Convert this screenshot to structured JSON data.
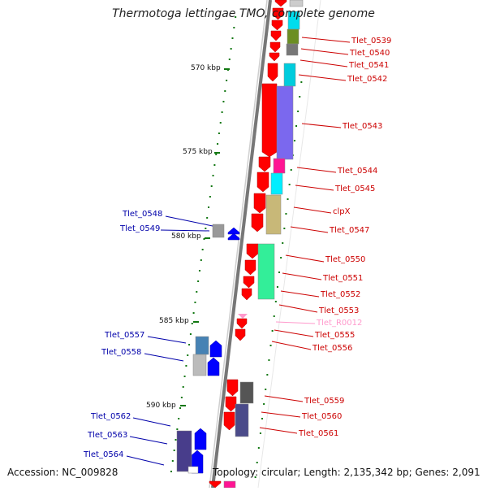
{
  "title": "Thermotoga lettingae TMO, complete genome",
  "footer": {
    "accession": "Accession: NC_009828",
    "topology": "Topology: circular; Length: 2,135,342 bp; Genes: 2,091"
  },
  "scale": {
    "labels": [
      "570 kbp",
      "575 kbp",
      "580 kbp",
      "585 kbp",
      "590 kbp"
    ]
  },
  "colors": {
    "forward_gene": "#ff0000",
    "reverse_gene": "#0000ff",
    "rna": "#ff99cc",
    "backbone": "#888888",
    "tick": "#117711"
  },
  "genes_right": [
    {
      "name": "Tlet_0539",
      "color": "#cc0000"
    },
    {
      "name": "Tlet_0540",
      "color": "#cc0000"
    },
    {
      "name": "Tlet_0541",
      "color": "#cc0000"
    },
    {
      "name": "Tlet_0542",
      "color": "#cc0000"
    },
    {
      "name": "Tlet_0543",
      "color": "#cc0000"
    },
    {
      "name": "Tlet_0544",
      "color": "#cc0000"
    },
    {
      "name": "Tlet_0545",
      "color": "#cc0000"
    },
    {
      "name": "clpX",
      "color": "#cc0000"
    },
    {
      "name": "Tlet_0547",
      "color": "#cc0000"
    },
    {
      "name": "Tlet_0550",
      "color": "#cc0000"
    },
    {
      "name": "Tlet_0551",
      "color": "#cc0000"
    },
    {
      "name": "Tlet_0552",
      "color": "#cc0000"
    },
    {
      "name": "Tlet_0553",
      "color": "#cc0000"
    },
    {
      "name": "Tlet_R0012",
      "color": "#ff99cc"
    },
    {
      "name": "Tlet_0555",
      "color": "#cc0000"
    },
    {
      "name": "Tlet_0556",
      "color": "#cc0000"
    },
    {
      "name": "Tlet_0559",
      "color": "#cc0000"
    },
    {
      "name": "Tlet_0560",
      "color": "#cc0000"
    },
    {
      "name": "Tlet_0561",
      "color": "#cc0000"
    }
  ],
  "genes_left": [
    {
      "name": "Tlet_0548",
      "color": "#0000aa"
    },
    {
      "name": "Tlet_0549",
      "color": "#0000aa"
    },
    {
      "name": "Tlet_0557",
      "color": "#0000aa"
    },
    {
      "name": "Tlet_0558",
      "color": "#0000aa"
    },
    {
      "name": "Tlet_0562",
      "color": "#0000aa"
    },
    {
      "name": "Tlet_0563",
      "color": "#0000aa"
    },
    {
      "name": "Tlet_0564",
      "color": "#0000aa"
    }
  ]
}
